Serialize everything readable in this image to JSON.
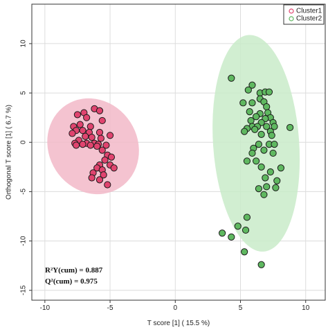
{
  "chart_data": {
    "type": "scatter",
    "xlabel": "T score [1] ( 15.5 %)",
    "ylabel": "Orthogonal T score [1] ( 6.7 %)",
    "xlim": [
      -11,
      11.5
    ],
    "ylim": [
      -16,
      14
    ],
    "x_ticks": [
      -10,
      -5,
      0,
      5,
      10
    ],
    "y_ticks": [
      -15,
      -10,
      -5,
      0,
      5,
      10
    ],
    "grid": true,
    "legend_position": "top-right",
    "annotations": {
      "r2y": "R²Y(cum) = 0.887",
      "q2": "Q²(cum) = 0.975"
    },
    "series": [
      {
        "name": "Cluster1",
        "color": "#e0446f",
        "ellipse_color": "#f2b8c8",
        "ellipse": {
          "cx": -6.3,
          "cy": -0.4,
          "rx": 3.4,
          "ry": 5.0,
          "angle_deg": -33
        },
        "points": [
          [
            -6.2,
            3.4
          ],
          [
            -5.8,
            3.2
          ],
          [
            -7.0,
            3.0
          ],
          [
            -7.5,
            2.8
          ],
          [
            -6.8,
            2.5
          ],
          [
            -5.6,
            2.2
          ],
          [
            -7.8,
            1.6
          ],
          [
            -7.3,
            1.8
          ],
          [
            -6.5,
            1.6
          ],
          [
            -7.6,
            1.2
          ],
          [
            -7.1,
            1.2
          ],
          [
            -6.6,
            1.0
          ],
          [
            -5.8,
            1.0
          ],
          [
            -7.9,
            0.9
          ],
          [
            -6.9,
            0.6
          ],
          [
            -6.4,
            0.5
          ],
          [
            -5.7,
            0.4
          ],
          [
            -5.0,
            0.7
          ],
          [
            -7.4,
            0.2
          ],
          [
            -7.7,
            -0.1
          ],
          [
            -6.8,
            -0.1
          ],
          [
            -6.2,
            -0.1
          ],
          [
            -5.9,
            -0.2
          ],
          [
            -7.1,
            -0.2
          ],
          [
            -6.5,
            -0.3
          ],
          [
            -7.6,
            -0.3
          ],
          [
            -5.3,
            -0.3
          ],
          [
            -6.0,
            -0.4
          ],
          [
            -5.6,
            -0.8
          ],
          [
            -5.2,
            -1.3
          ],
          [
            -4.9,
            -1.5
          ],
          [
            -5.4,
            -1.8
          ],
          [
            -5.0,
            -2.3
          ],
          [
            -5.8,
            -2.3
          ],
          [
            -6.0,
            -2.6
          ],
          [
            -5.6,
            -2.8
          ],
          [
            -4.7,
            -2.6
          ],
          [
            -5.5,
            -3.3
          ],
          [
            -6.3,
            -3.1
          ],
          [
            -6.4,
            -3.6
          ],
          [
            -5.8,
            -3.8
          ],
          [
            -5.2,
            -4.3
          ]
        ]
      },
      {
        "name": "Cluster2",
        "color": "#5fb860",
        "ellipse_color": "#c9ebc9",
        "ellipse": {
          "cx": 6.2,
          "cy": -0.1,
          "rx": 3.3,
          "ry": 11.0,
          "angle_deg": -4
        },
        "points": [
          [
            4.3,
            6.5
          ],
          [
            5.9,
            5.8
          ],
          [
            5.6,
            5.3
          ],
          [
            6.5,
            5.0
          ],
          [
            6.9,
            5.1
          ],
          [
            7.2,
            5.1
          ],
          [
            6.5,
            4.4
          ],
          [
            5.2,
            4.0
          ],
          [
            5.9,
            4.0
          ],
          [
            6.8,
            4.1
          ],
          [
            7.0,
            3.6
          ],
          [
            5.7,
            3.1
          ],
          [
            6.5,
            2.9
          ],
          [
            7.1,
            3.0
          ],
          [
            6.2,
            2.6
          ],
          [
            7.3,
            2.5
          ],
          [
            5.8,
            2.2
          ],
          [
            6.9,
            2.4
          ],
          [
            7.5,
            2.0
          ],
          [
            6.6,
            2.0
          ],
          [
            5.9,
            1.6
          ],
          [
            6.3,
            1.6
          ],
          [
            7.0,
            1.6
          ],
          [
            7.6,
            1.6
          ],
          [
            5.5,
            1.4
          ],
          [
            6.1,
            1.3
          ],
          [
            5.3,
            1.1
          ],
          [
            7.3,
            1.1
          ],
          [
            6.6,
            0.8
          ],
          [
            7.4,
            0.7
          ],
          [
            6.4,
            -0.2
          ],
          [
            7.2,
            -0.2
          ],
          [
            7.6,
            -0.2
          ],
          [
            6.0,
            -0.6
          ],
          [
            6.8,
            -0.8
          ],
          [
            5.9,
            -1.1
          ],
          [
            7.5,
            -1.1
          ],
          [
            5.5,
            -1.9
          ],
          [
            6.2,
            -1.9
          ],
          [
            8.1,
            -2.6
          ],
          [
            7.3,
            -3.0
          ],
          [
            6.6,
            -2.5
          ],
          [
            7.8,
            -3.9
          ],
          [
            6.9,
            -3.6
          ],
          [
            7.0,
            -4.5
          ],
          [
            7.7,
            -4.6
          ],
          [
            6.4,
            -4.7
          ],
          [
            6.8,
            -5.3
          ],
          [
            8.8,
            1.5
          ],
          [
            5.5,
            -7.6
          ],
          [
            4.8,
            -8.5
          ],
          [
            5.4,
            -8.9
          ],
          [
            3.6,
            -9.2
          ],
          [
            4.3,
            -9.6
          ],
          [
            5.3,
            -11.1
          ],
          [
            6.6,
            -12.4
          ]
        ]
      }
    ]
  }
}
